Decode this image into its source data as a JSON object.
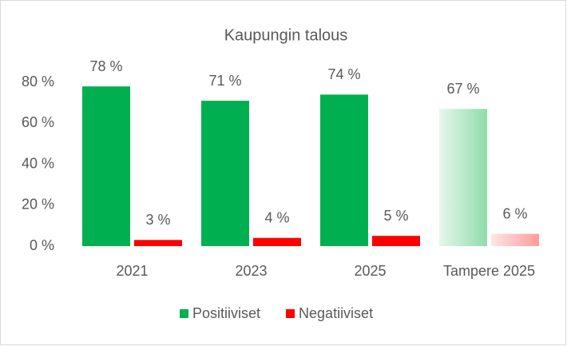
{
  "chart_data": {
    "type": "bar",
    "title": "Kaupungin talous",
    "categories": [
      "2021",
      "2023",
      "2025",
      "Tampere 2025"
    ],
    "series": [
      {
        "name": "Positiiviset",
        "color": "#00b050",
        "values": [
          78,
          71,
          74,
          67
        ],
        "value_labels": [
          "78 %",
          "71 %",
          "74 %",
          "67 %"
        ]
      },
      {
        "name": "Negatiiviset",
        "color": "#ff0000",
        "values": [
          3,
          4,
          5,
          6
        ],
        "value_labels": [
          "3 %",
          "4 %",
          "5 %",
          "6 %"
        ]
      }
    ],
    "ylim": [
      0,
      80
    ],
    "yticks": [
      {
        "value": 0,
        "label": "0 %"
      },
      {
        "value": 20,
        "label": "20 %"
      },
      {
        "value": 40,
        "label": "40 %"
      },
      {
        "value": 60,
        "label": "60 %"
      },
      {
        "value": 80,
        "label": "80 %"
      }
    ],
    "grid": false,
    "legend": "bottom"
  }
}
